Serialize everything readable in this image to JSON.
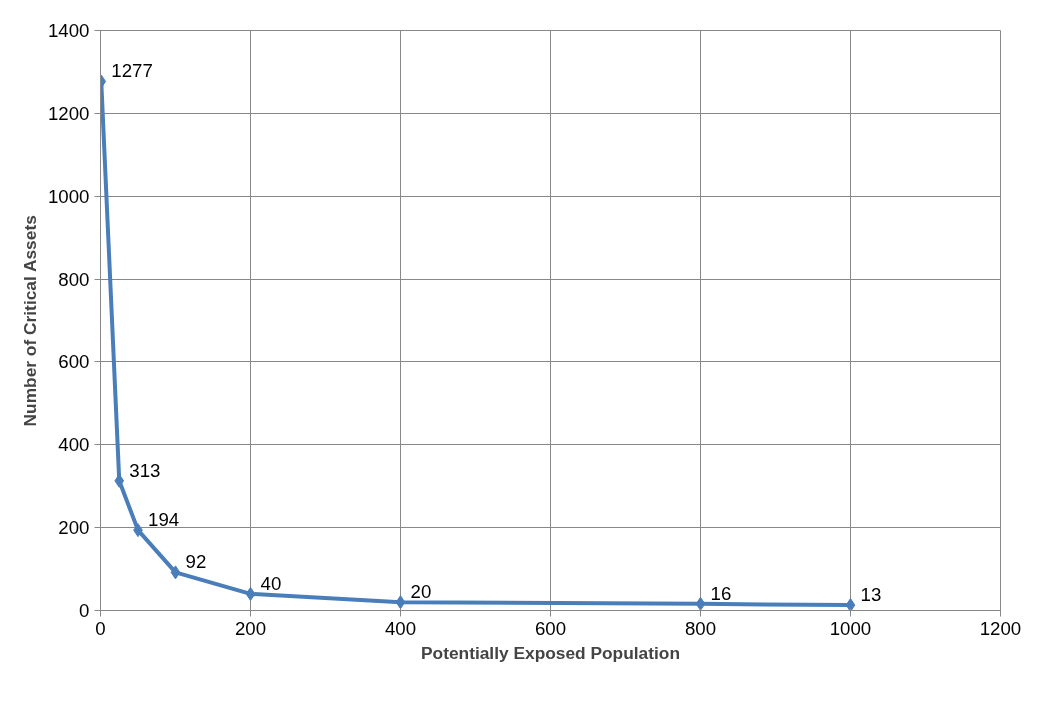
{
  "chart_data": {
    "type": "line",
    "xlabel": "Potentially Exposed Population",
    "ylabel": "Number of Critical Assets",
    "x": [
      1,
      25,
      50,
      100,
      200,
      400,
      800,
      1000
    ],
    "series": [
      {
        "color": "#4a7ebb",
        "values": [
          1277,
          313,
          194,
          92,
          40,
          20,
          16,
          13
        ]
      }
    ],
    "xlim": [
      0,
      1200
    ],
    "xticks": [
      0,
      200,
      400,
      600,
      800,
      1000,
      1200
    ],
    "ylim": [
      0,
      1400
    ],
    "yticks": [
      0,
      200,
      400,
      600,
      800,
      1000,
      1200,
      1400
    ],
    "grid": true,
    "marker": "diamond",
    "line_style": "solid",
    "data_labels": true
  }
}
